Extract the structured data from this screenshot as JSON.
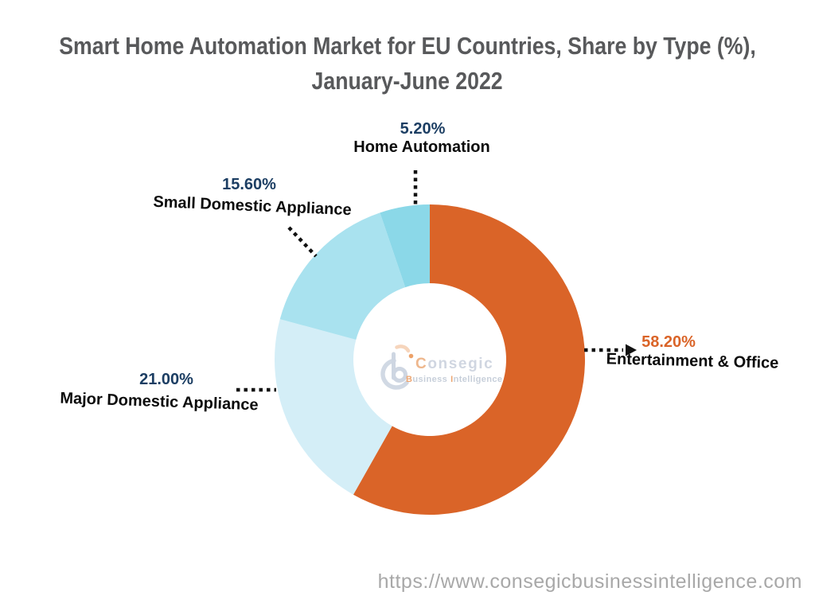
{
  "title": {
    "line1": "Smart Home Automation Market for EU Countries, Share by Type (%),",
    "line2": "January-June 2022"
  },
  "chart_data": {
    "type": "pie",
    "donut": true,
    "title": "Smart Home Automation Market for EU Countries, Share by Type (%), January-June 2022",
    "direction": "clockwise",
    "start_angle_deg": 0,
    "legend_position": "callout-labels",
    "segments": [
      {
        "label": "Entertainment & Office",
        "value": 58.2,
        "display": "58.20%",
        "color": "#DA6428",
        "pct_color": "#DA6428"
      },
      {
        "label": "Major Domestic Appliance",
        "value": 21.0,
        "display": "21.00%",
        "color": "#D4EEF7",
        "pct_color": "#1C3E63"
      },
      {
        "label": "Small Domestic Appliance",
        "value": 15.6,
        "display": "15.60%",
        "color": "#A9E2EF",
        "pct_color": "#1C3E63"
      },
      {
        "label": "Home Automation",
        "value": 5.2,
        "display": "5.20%",
        "color": "#8BD8E8",
        "pct_color": "#1C3E63"
      }
    ]
  },
  "watermark": {
    "name_initial": "C",
    "name_rest": "onsegic",
    "sub_word1_initial": "B",
    "sub_word1_rest": "usiness",
    "sub_word2_initial": "I",
    "sub_word2_rest": "ntelligence",
    "mark_gray": "#C6D0DE",
    "mark_blue": "#C2CCDB",
    "mark_peach": "#F5CBAC",
    "mark_orange": "#E98B44"
  },
  "footer": {
    "url": "https://www.consegicbusinessintelligence.com"
  },
  "style_colors": {
    "title_text": "#58595B",
    "category_text": "#0B0B0B",
    "percent_navy": "#1C3E63",
    "leader_line": "#111111",
    "url_text": "#A8A8A8"
  }
}
